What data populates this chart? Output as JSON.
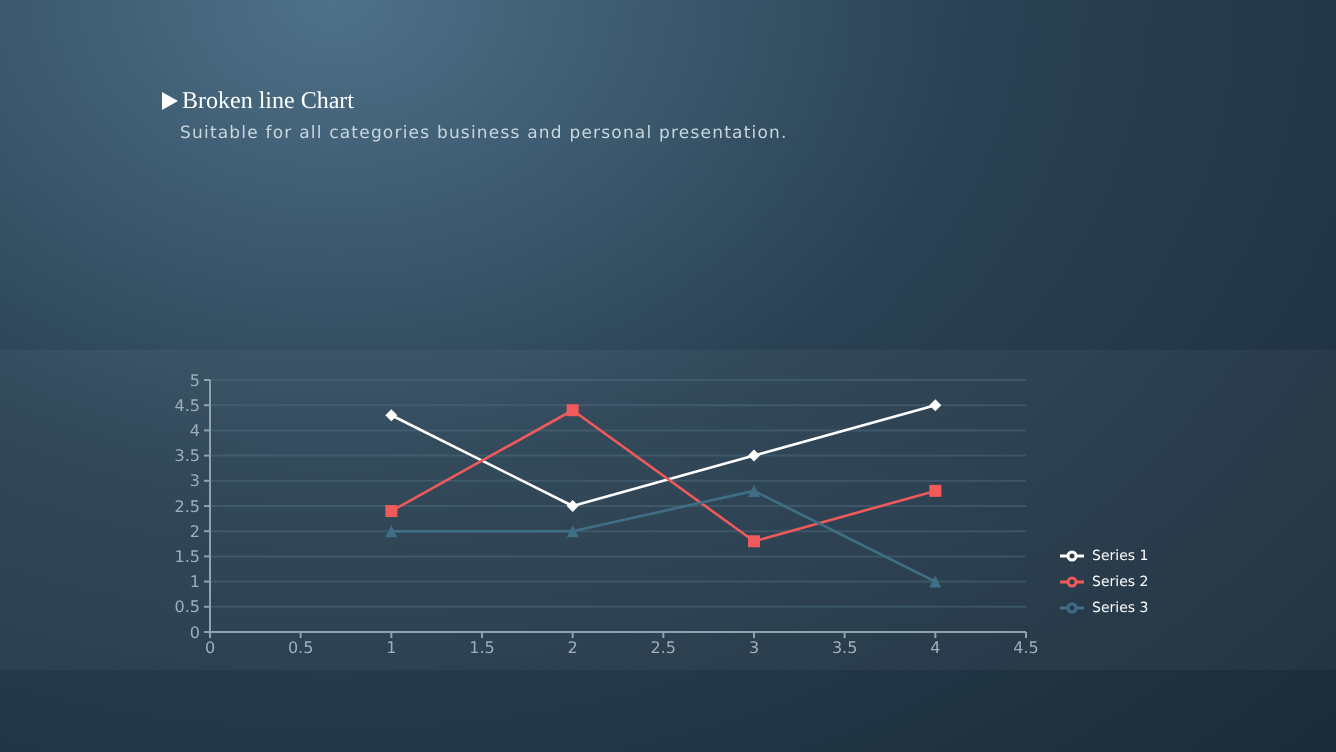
{
  "chart_data": {
    "type": "line",
    "title": "Broken line Chart",
    "subtitle": "Suitable for all categories business and personal presentation.",
    "x": [
      1,
      2,
      3,
      4
    ],
    "series": [
      {
        "name": "Series 1",
        "color": "#ffffff",
        "values": [
          4.3,
          2.5,
          3.5,
          4.5
        ],
        "marker": "diamond"
      },
      {
        "name": "Series 2",
        "color": "#f05a5a",
        "values": [
          2.4,
          4.4,
          1.8,
          2.8
        ],
        "marker": "square"
      },
      {
        "name": "Series 3",
        "color": "#3f6e86",
        "values": [
          2,
          2,
          2.8,
          1
        ],
        "marker": "triangle"
      }
    ],
    "xlim": [
      0,
      4.5
    ],
    "xticks": [
      0,
      0.5,
      1,
      1.5,
      2,
      2.5,
      3,
      3.5,
      4,
      4.5
    ],
    "ylim": [
      0,
      5
    ],
    "yticks": [
      0,
      0.5,
      1,
      1.5,
      2,
      2.5,
      3,
      3.5,
      4,
      4.5,
      5
    ],
    "grid": "y",
    "legend": "bottom right",
    "line_style": "solid"
  }
}
